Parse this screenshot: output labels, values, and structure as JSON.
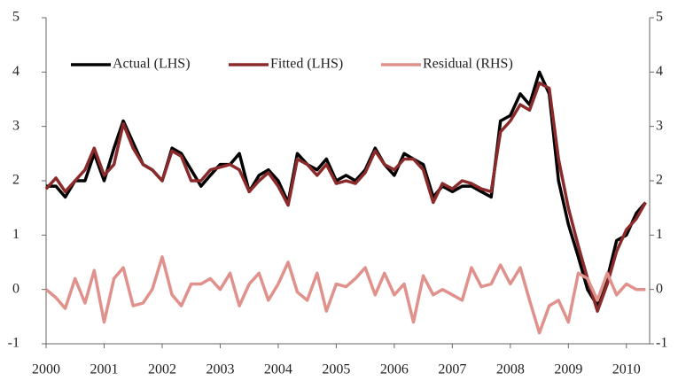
{
  "chart_data": {
    "type": "line",
    "x": [
      2000,
      2000.17,
      2000.33,
      2000.5,
      2000.67,
      2000.83,
      2001,
      2001.17,
      2001.33,
      2001.5,
      2001.67,
      2001.83,
      2002,
      2002.17,
      2002.33,
      2002.5,
      2002.67,
      2002.83,
      2003,
      2003.17,
      2003.33,
      2003.5,
      2003.67,
      2003.83,
      2004,
      2004.17,
      2004.33,
      2004.5,
      2004.67,
      2004.83,
      2005,
      2005.17,
      2005.33,
      2005.5,
      2005.67,
      2005.83,
      2006,
      2006.17,
      2006.33,
      2006.5,
      2006.67,
      2006.83,
      2007,
      2007.17,
      2007.33,
      2007.5,
      2007.67,
      2007.83,
      2008,
      2008.17,
      2008.33,
      2008.5,
      2008.67,
      2008.83,
      2009,
      2009.17,
      2009.33,
      2009.5,
      2009.67,
      2009.83,
      2010,
      2010.17,
      2010.33
    ],
    "series": [
      {
        "name": "Actual (LHS)",
        "color": "#000000",
        "axis": "y",
        "values": [
          1.9,
          1.9,
          1.7,
          2.0,
          2.0,
          2.5,
          2.0,
          2.6,
          3.1,
          2.7,
          2.3,
          2.2,
          2.0,
          2.6,
          2.5,
          2.2,
          1.9,
          2.1,
          2.3,
          2.3,
          2.5,
          1.8,
          2.1,
          2.2,
          2.0,
          1.6,
          2.5,
          2.3,
          2.2,
          2.4,
          2.0,
          2.1,
          2.0,
          2.2,
          2.6,
          2.3,
          2.1,
          2.5,
          2.4,
          2.3,
          1.7,
          1.9,
          1.8,
          1.9,
          1.9,
          1.8,
          1.7,
          3.1,
          3.2,
          3.6,
          3.4,
          4.0,
          3.6,
          2.0,
          1.2,
          0.6,
          0.0,
          -0.3,
          0.2,
          0.9,
          1.0,
          1.4,
          1.6
        ]
      },
      {
        "name": "Fitted (LHS)",
        "color": "#8b2a2a",
        "axis": "y",
        "values": [
          1.85,
          2.05,
          1.8,
          2.0,
          2.2,
          2.6,
          2.1,
          2.3,
          3.05,
          2.6,
          2.3,
          2.2,
          2.0,
          2.55,
          2.45,
          2.0,
          2.0,
          2.2,
          2.25,
          2.3,
          2.2,
          1.8,
          2.0,
          2.15,
          1.9,
          1.55,
          2.4,
          2.3,
          2.1,
          2.3,
          1.95,
          2.0,
          1.95,
          2.15,
          2.55,
          2.3,
          2.2,
          2.4,
          2.4,
          2.2,
          1.6,
          1.95,
          1.85,
          2.0,
          1.95,
          1.85,
          1.8,
          2.9,
          3.1,
          3.4,
          3.3,
          3.8,
          3.7,
          2.4,
          1.5,
          0.8,
          0.2,
          -0.4,
          0.1,
          0.7,
          1.1,
          1.3,
          1.6
        ]
      },
      {
        "name": "Residual (RHS)",
        "color": "#e0918c",
        "axis": "y2",
        "values": [
          0.0,
          -0.15,
          -0.35,
          0.2,
          -0.25,
          0.35,
          -0.6,
          0.2,
          0.4,
          -0.3,
          -0.25,
          0.0,
          0.6,
          -0.1,
          -0.3,
          0.1,
          0.1,
          0.2,
          0.0,
          0.3,
          -0.3,
          0.1,
          0.3,
          -0.2,
          0.1,
          0.5,
          -0.05,
          -0.2,
          0.3,
          -0.4,
          0.1,
          0.05,
          0.2,
          0.4,
          -0.1,
          0.3,
          -0.1,
          0.1,
          -0.6,
          0.25,
          -0.1,
          0.0,
          -0.1,
          -0.2,
          0.4,
          0.05,
          0.1,
          0.45,
          0.1,
          0.4,
          -0.2,
          -0.8,
          -0.3,
          -0.2,
          -0.6,
          0.3,
          0.2,
          -0.2,
          0.3,
          -0.1,
          0.1,
          0.0,
          0.0
        ]
      }
    ],
    "xlim": [
      2000,
      2010.4
    ],
    "xticks": [
      2000,
      2001,
      2002,
      2003,
      2004,
      2005,
      2006,
      2007,
      2008,
      2009,
      2010
    ],
    "ylim": [
      -1,
      5
    ],
    "yticks": [
      -1,
      0,
      1,
      2,
      3,
      4,
      5
    ],
    "y2lim": [
      -1,
      5
    ],
    "y2ticks": [
      -1,
      0,
      1,
      2,
      3,
      4,
      5
    ],
    "legend": "top-left"
  }
}
